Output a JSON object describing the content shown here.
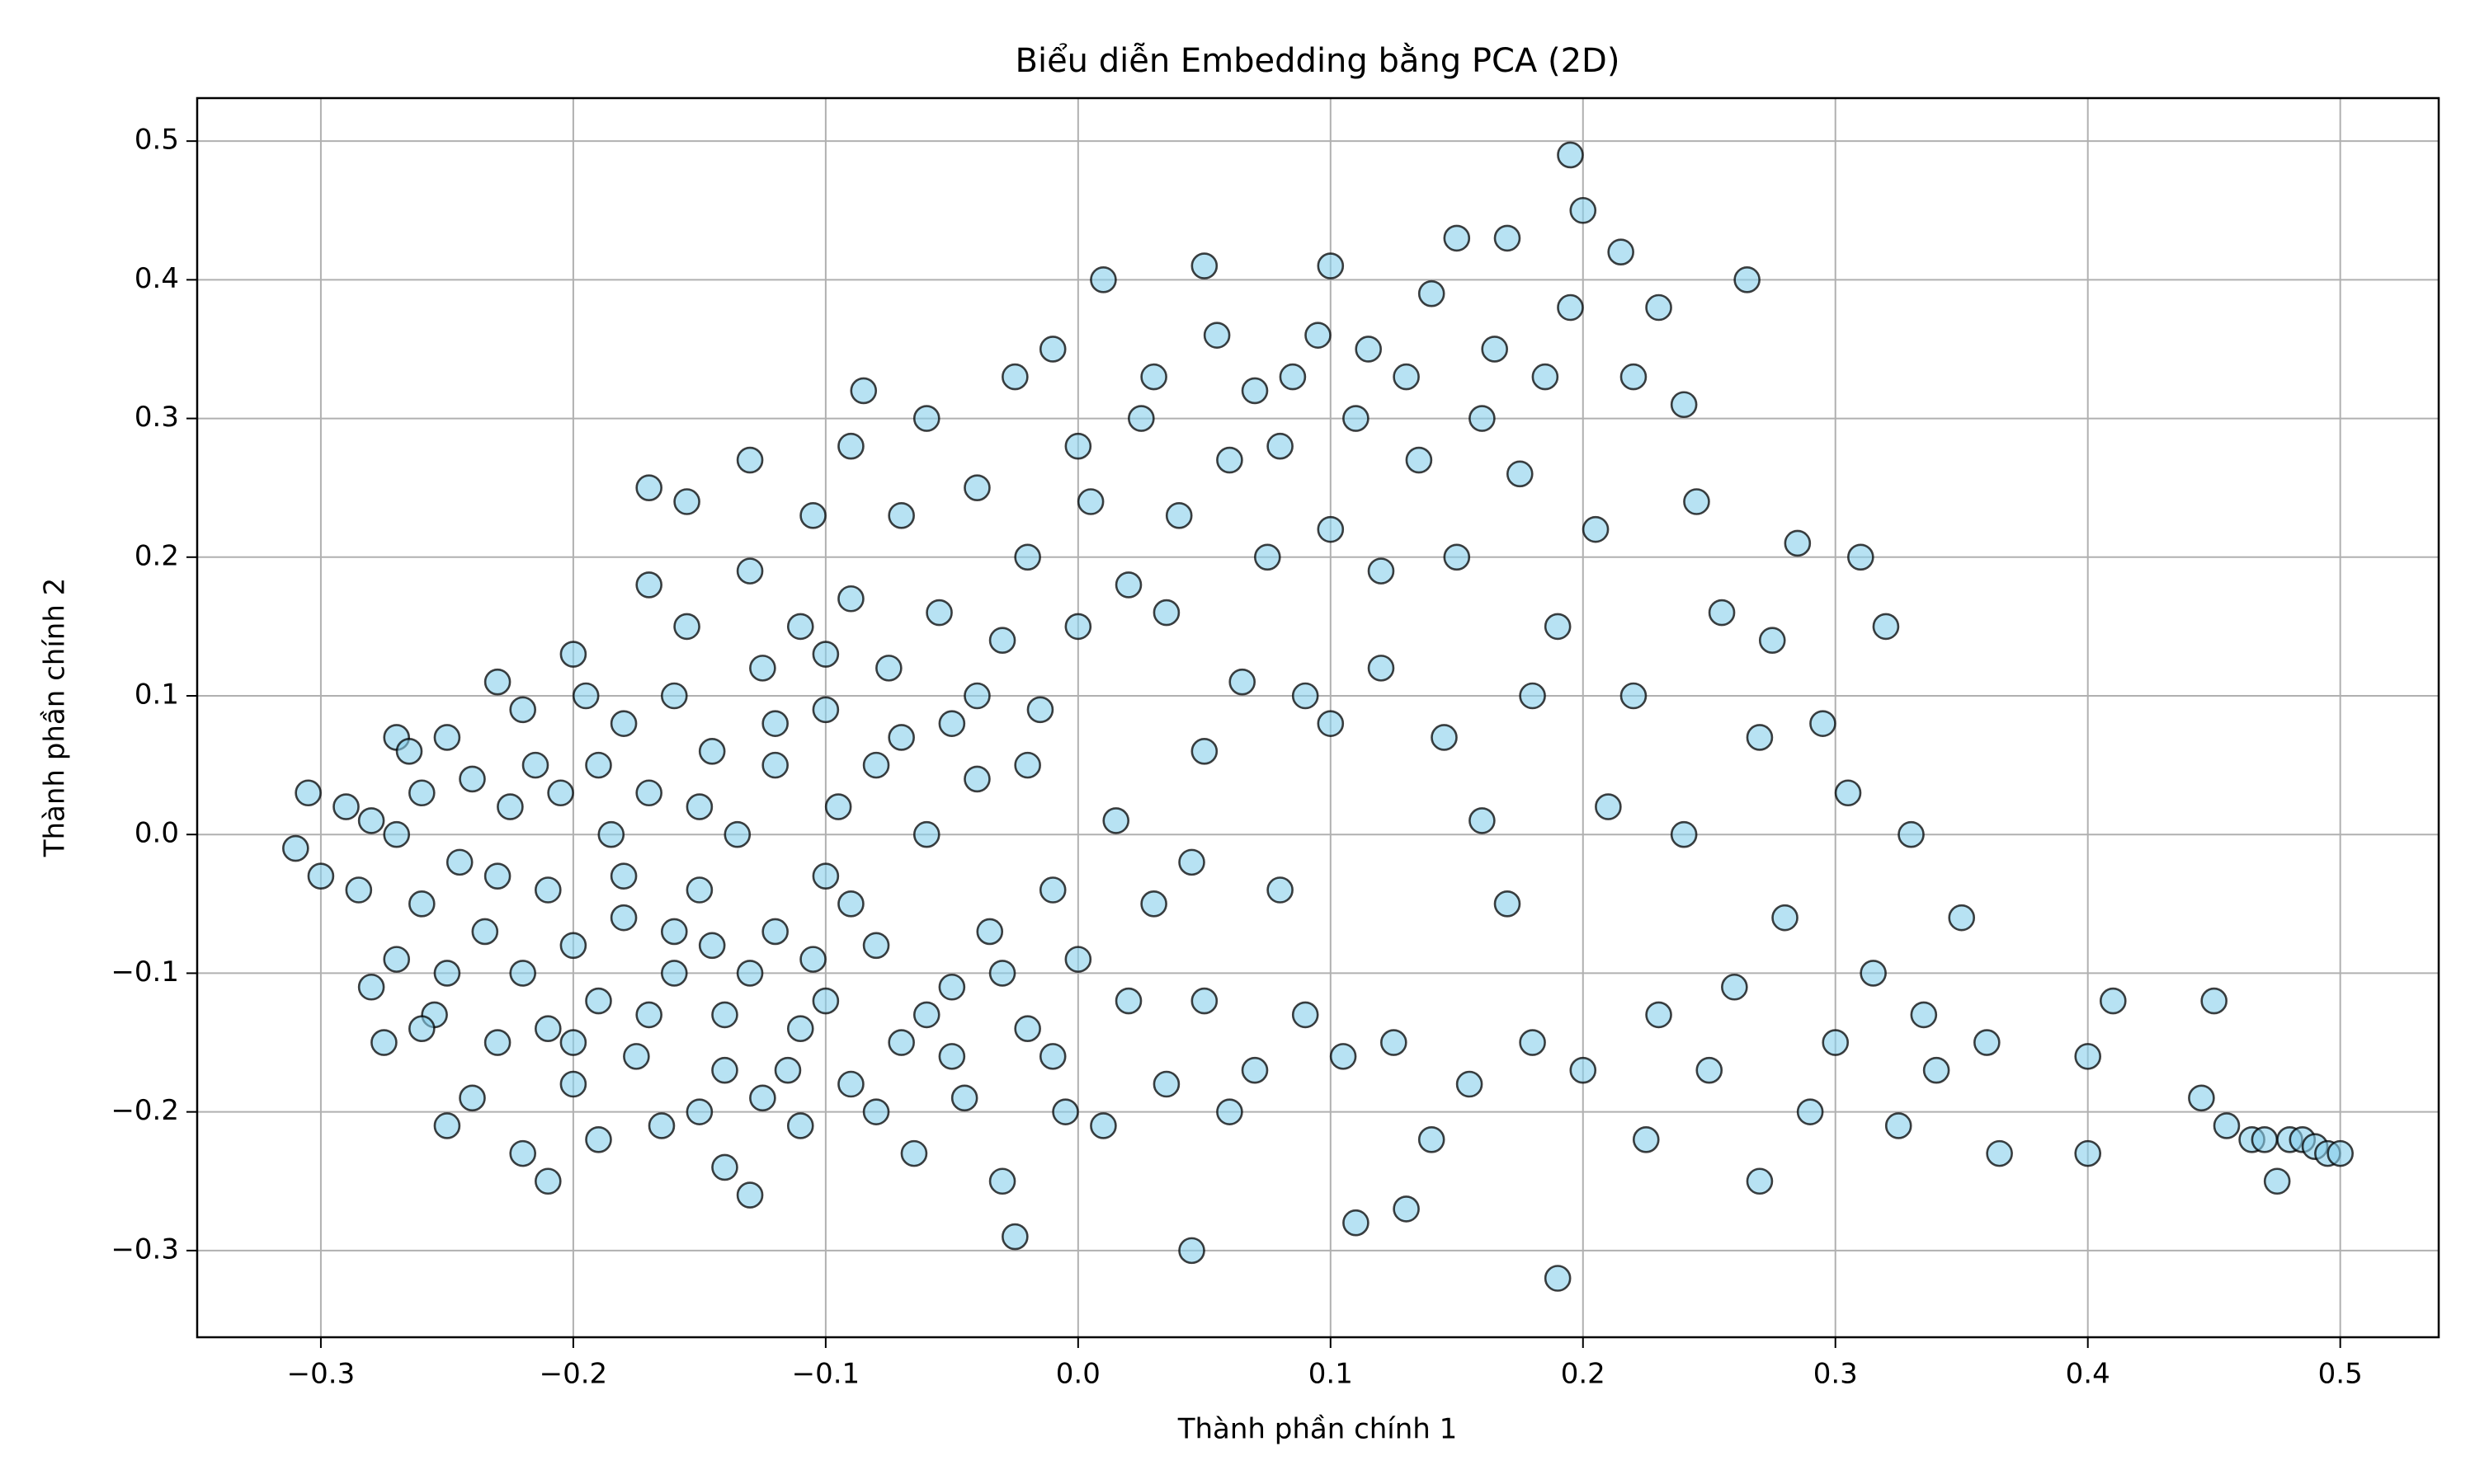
{
  "chart_data": {
    "type": "scatter",
    "title": "Biểu diễn Embedding bằng PCA (2D)",
    "xlabel": "Thành phần chính 1",
    "ylabel": "Thành phần chính 2",
    "color": "#87ceeb",
    "edgecolor": "#000000",
    "grid": true,
    "xlim": [
      -0.349,
      0.539
    ],
    "ylim": [
      -0.3625,
      0.531
    ],
    "xticks": [
      {
        "value": -0.3,
        "label": "−0.3"
      },
      {
        "value": -0.2,
        "label": "−0.2"
      },
      {
        "value": -0.1,
        "label": "−0.1"
      },
      {
        "value": 0,
        "label": "0.0"
      },
      0.1,
      0.2,
      0.3,
      0.4,
      0.5
    ],
    "yticks": [
      {
        "value": -0.3,
        "label": "−0.3"
      },
      {
        "value": -0.2,
        "label": "−0.2"
      },
      {
        "value": -0.1,
        "label": "−0.1"
      },
      {
        "value": 0,
        "label": "0.0"
      },
      0.1,
      0.2,
      0.3,
      0.4,
      0.5
    ],
    "x": [
      -0.31,
      -0.305,
      -0.3,
      -0.29,
      -0.285,
      -0.28,
      -0.28,
      -0.275,
      -0.27,
      -0.27,
      -0.265,
      -0.26,
      -0.26,
      -0.255,
      -0.25,
      -0.25,
      -0.245,
      -0.24,
      -0.24,
      -0.235,
      -0.23,
      -0.23,
      -0.225,
      -0.22,
      -0.22,
      -0.215,
      -0.21,
      -0.21,
      -0.205,
      -0.2,
      -0.2,
      -0.2,
      -0.195,
      -0.19,
      -0.19,
      -0.185,
      -0.18,
      -0.18,
      -0.175,
      -0.17,
      -0.17,
      -0.17,
      -0.165,
      -0.16,
      -0.16,
      -0.155,
      -0.155,
      -0.15,
      -0.15,
      -0.145,
      -0.14,
      -0.14,
      -0.135,
      -0.13,
      -0.13,
      -0.13,
      -0.125,
      -0.12,
      -0.12,
      -0.115,
      -0.11,
      -0.11,
      -0.105,
      -0.1,
      -0.1,
      -0.1,
      -0.095,
      -0.09,
      -0.09,
      -0.09,
      -0.085,
      -0.08,
      -0.08,
      -0.075,
      -0.07,
      -0.07,
      -0.065,
      -0.06,
      -0.06,
      -0.055,
      -0.05,
      -0.05,
      -0.045,
      -0.04,
      -0.04,
      -0.035,
      -0.03,
      -0.03,
      -0.025,
      -0.025,
      -0.02,
      -0.02,
      -0.015,
      -0.01,
      -0.01,
      -0.005,
      0,
      0,
      0,
      0.005,
      0.01,
      0.01,
      0.015,
      0.02,
      0.02,
      0.025,
      0.03,
      0.03,
      0.035,
      0.035,
      0.04,
      0.045,
      0.045,
      0.05,
      0.05,
      0.05,
      0.055,
      0.06,
      0.06,
      0.065,
      0.07,
      0.07,
      0.075,
      0.08,
      0.08,
      0.085,
      0.09,
      0.09,
      0.095,
      0.1,
      0.1,
      0.1,
      0.105,
      0.11,
      0.11,
      0.115,
      0.12,
      0.12,
      0.125,
      0.13,
      0.13,
      0.135,
      0.14,
      0.14,
      0.145,
      0.15,
      0.15,
      0.155,
      0.16,
      0.16,
      0.165,
      0.17,
      0.17,
      0.175,
      0.18,
      0.18,
      0.185,
      0.19,
      0.19,
      0.195,
      0.195,
      0.2,
      0.2,
      0.205,
      0.21,
      0.215,
      0.22,
      0.22,
      0.225,
      0.23,
      0.23,
      0.24,
      0.24,
      0.245,
      0.25,
      0.255,
      0.26,
      0.265,
      0.27,
      0.27,
      0.275,
      0.28,
      0.285,
      0.29,
      0.295,
      0.3,
      0.305,
      0.31,
      0.315,
      0.32,
      0.325,
      0.33,
      0.335,
      0.34,
      0.35,
      0.36,
      0.365,
      0.4,
      0.4,
      0.41,
      0.445,
      0.45,
      0.455,
      0.465,
      0.47,
      0.475,
      0.48,
      0.485,
      0.49,
      0.495,
      0.5,
      -0.2,
      -0.19,
      -0.18,
      -0.17,
      -0.16,
      -0.15,
      -0.14,
      -0.13,
      -0.12,
      -0.11,
      -0.1,
      -0.09,
      -0.08,
      -0.07,
      -0.06,
      -0.05,
      -0.04,
      -0.03,
      -0.02,
      -0.01,
      -0.23,
      -0.25,
      -0.26,
      -0.27,
      -0.22,
      -0.21,
      -0.145,
      -0.125,
      -0.105
    ],
    "y": [
      -0.01,
      0.03,
      -0.03,
      0.02,
      -0.04,
      -0.11,
      0.01,
      -0.15,
      0.07,
      -0.09,
      0.06,
      -0.05,
      0.03,
      -0.13,
      0.07,
      -0.21,
      -0.02,
      -0.19,
      0.04,
      -0.07,
      0.11,
      -0.15,
      0.02,
      -0.23,
      -0.1,
      0.05,
      -0.25,
      -0.04,
      0.03,
      0.13,
      -0.18,
      -0.08,
      0.1,
      -0.12,
      -0.22,
      0,
      0.08,
      -0.06,
      -0.16,
      0.25,
      0.18,
      0.03,
      -0.21,
      -0.1,
      0.1,
      0.24,
      0.15,
      -0.04,
      -0.2,
      0.06,
      -0.13,
      -0.24,
      0,
      0.19,
      0.27,
      -0.26,
      0.12,
      -0.07,
      0.05,
      -0.17,
      0.15,
      -0.21,
      0.23,
      0.09,
      -0.12,
      -0.03,
      0.02,
      0.28,
      0.17,
      -0.18,
      0.32,
      0.05,
      -0.08,
      0.12,
      -0.15,
      0.23,
      -0.23,
      0,
      0.3,
      0.16,
      -0.11,
      0.08,
      -0.19,
      0.25,
      0.04,
      -0.07,
      0.14,
      -0.25,
      0.33,
      -0.29,
      0.2,
      -0.14,
      0.09,
      -0.04,
      0.35,
      -0.2,
      0.28,
      0.15,
      -0.09,
      0.24,
      -0.21,
      0.4,
      0.01,
      0.18,
      -0.12,
      0.3,
      -0.05,
      0.33,
      0.16,
      -0.18,
      0.23,
      -0.02,
      -0.3,
      0.41,
      0.06,
      -0.12,
      0.36,
      0.27,
      -0.2,
      0.11,
      0.32,
      -0.17,
      0.2,
      0.28,
      -0.04,
      0.33,
      0.1,
      -0.13,
      0.36,
      0.41,
      0.22,
      0.08,
      -0.16,
      0.3,
      -0.28,
      0.35,
      0.12,
      0.19,
      -0.15,
      0.33,
      -0.27,
      0.27,
      0.39,
      -0.22,
      0.07,
      0.43,
      0.2,
      -0.18,
      0.3,
      0.01,
      0.35,
      0.43,
      -0.05,
      0.26,
      0.1,
      -0.15,
      0.33,
      0.15,
      -0.32,
      0.49,
      0.38,
      0.45,
      -0.17,
      0.22,
      0.02,
      0.42,
      0.33,
      0.1,
      -0.22,
      0.38,
      -0.13,
      0.31,
      0,
      0.24,
      -0.17,
      0.16,
      -0.11,
      0.4,
      0.07,
      -0.25,
      0.14,
      -0.06,
      0.21,
      -0.2,
      0.08,
      -0.15,
      0.03,
      0.2,
      -0.1,
      0.15,
      -0.21,
      0,
      -0.13,
      -0.17,
      -0.06,
      -0.15,
      -0.23,
      -0.23,
      -0.16,
      -0.12,
      -0.19,
      -0.12,
      -0.21,
      -0.22,
      -0.22,
      -0.25,
      -0.22,
      -0.22,
      -0.225,
      -0.23,
      -0.23,
      -0.15,
      0.05,
      -0.03,
      -0.13,
      -0.07,
      0.02,
      -0.17,
      -0.1,
      0.08,
      -0.14,
      0.13,
      -0.05,
      -0.2,
      0.07,
      -0.13,
      -0.16,
      0.1,
      -0.1,
      0.05,
      -0.16,
      -0.03,
      -0.1,
      -0.14,
      0,
      0.09,
      -0.14,
      -0.08,
      -0.19,
      -0.09
    ]
  }
}
